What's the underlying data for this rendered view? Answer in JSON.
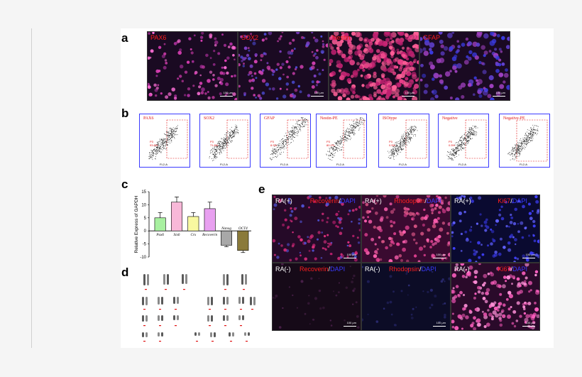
{
  "panels": {
    "a": "a",
    "b": "b",
    "c": "c",
    "d": "d",
    "e": "e"
  },
  "panel_a": [
    {
      "label": "PAX6",
      "color": "#c83aa8"
    },
    {
      "label": "SOX2",
      "color": "#c83aa8"
    },
    {
      "label": "Nestin",
      "color": "#e0408a"
    },
    {
      "label": "GFAP",
      "color": "#b83a9a"
    }
  ],
  "scale_text": "100 μm",
  "panel_b": [
    {
      "label": "PAX6",
      "p": "P3",
      "v": "93.8%"
    },
    {
      "label": "SOX2",
      "p": "P3",
      "v": "71.8%"
    },
    {
      "label": "GFAP",
      "p": "P3",
      "v": "8.9%"
    },
    {
      "label": "Nestin-PE",
      "p": "P3",
      "v": "80.2%"
    },
    {
      "label": "ISOtype",
      "p": "P3",
      "v": "0.5%"
    },
    {
      "label": "Negative",
      "p": "P3",
      "v": "0.5%"
    },
    {
      "label": "Negative-PE",
      "p": "",
      "v": ""
    }
  ],
  "flow_axis": {
    "y": "SSC-A",
    "x": "FL2-A"
  },
  "chart_data": {
    "type": "bar",
    "categories": [
      "Pax6",
      "Six6",
      "Crx",
      "Recoverin",
      "Nanog",
      "OCT4"
    ],
    "values": [
      5,
      11,
      5.5,
      8.5,
      -5.5,
      -7.5
    ],
    "errors": [
      2,
      2,
      1.5,
      2.5,
      0.6,
      0.8
    ],
    "colors": [
      "#a8f0a0",
      "#f8b8d8",
      "#f8f8a0",
      "#e8a0f0",
      "#a8a8a8",
      "#8a7a3a"
    ],
    "ylabel": "Relative Express of GAPDH",
    "ylim": [
      -10,
      15
    ],
    "yticks": [
      "15",
      "10",
      "5",
      "0",
      "-5",
      "-10"
    ]
  },
  "panel_e": [
    {
      "ra": "RA(+)",
      "marker": "Recoverin",
      "slash": "/",
      "dapi": "DAPI",
      "tone": "mixed"
    },
    {
      "ra": "RA(+)",
      "marker": "Rhodopsin",
      "slash": "/",
      "dapi": "DAPI",
      "tone": "pink"
    },
    {
      "ra": "RA(+)",
      "marker": "Ki67",
      "slash": "/",
      "dapi": "DAPI",
      "tone": "blue"
    },
    {
      "ra": "RA(-)",
      "marker": "Recoverin",
      "slash": "/",
      "dapi": "DAPI",
      "tone": "dim"
    },
    {
      "ra": "RA(-)",
      "marker": "Rhodopsin",
      "slash": "/",
      "dapi": "DAPI",
      "tone": "dimblue"
    },
    {
      "ra": "RA(-)",
      "marker": "Ki67",
      "slash": "/",
      "dapi": "DAPI",
      "tone": "pinkdense"
    }
  ]
}
